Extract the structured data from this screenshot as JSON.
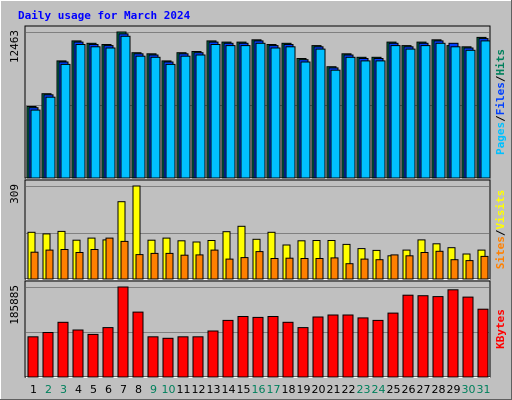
{
  "title": "Daily usage for March 2024",
  "colors": {
    "background": "#c0c0c0",
    "title": "#0000ff",
    "hits": "#00805c",
    "files": "#0040ff",
    "pages": "#00c0ff",
    "visits": "#ffff00",
    "sites": "#ff8000",
    "kbytes": "#ff0000",
    "weekend_label": "#00805c",
    "weekday_label": "#000000",
    "grid": "#808080"
  },
  "chart_data": [
    {
      "type": "bar",
      "panel": "hits-files-pages",
      "max_label": "12463",
      "ylim": [
        0,
        12463
      ],
      "axis_labels": [
        {
          "text": "Pages",
          "color_key": "pages"
        },
        {
          "text": "/",
          "color_key": "axis_sep"
        },
        {
          "text": "Files",
          "color_key": "files"
        },
        {
          "text": "/",
          "color_key": "axis_sep"
        },
        {
          "text": "Hits",
          "color_key": "hits"
        }
      ],
      "categories": [
        "1",
        "2",
        "3",
        "4",
        "5",
        "6",
        "7",
        "8",
        "9",
        "10",
        "11",
        "12",
        "13",
        "14",
        "15",
        "16",
        "17",
        "18",
        "19",
        "20",
        "21",
        "22",
        "23",
        "24",
        "25",
        "26",
        "27",
        "28",
        "29",
        "30",
        "31"
      ],
      "series": [
        {
          "name": "Hits",
          "color_key": "hits",
          "values": [
            6100,
            7200,
            10000,
            11700,
            11500,
            11400,
            12463,
            10700,
            10600,
            10000,
            10700,
            10800,
            11700,
            11600,
            11600,
            11800,
            11400,
            11500,
            10200,
            11300,
            9500,
            10600,
            10300,
            10300,
            11600,
            11300,
            11600,
            11800,
            11300,
            11200,
            12000
          ]
        },
        {
          "name": "Files",
          "color_key": "files",
          "values": [
            6000,
            7100,
            9900,
            11600,
            11400,
            11300,
            12300,
            10600,
            10500,
            9900,
            10600,
            10700,
            11600,
            11500,
            11500,
            11700,
            11300,
            11400,
            10100,
            11200,
            9400,
            10500,
            10200,
            10200,
            11500,
            11200,
            11500,
            11700,
            11500,
            11100,
            11900
          ]
        },
        {
          "name": "Pages",
          "color_key": "pages",
          "values": [
            5800,
            6900,
            9700,
            11400,
            11200,
            11100,
            12100,
            10400,
            10300,
            9700,
            10400,
            10500,
            11400,
            11300,
            11300,
            11500,
            11100,
            11200,
            9900,
            11000,
            9200,
            10300,
            10000,
            10000,
            11300,
            11000,
            11300,
            11500,
            11200,
            10900,
            11700
          ]
        }
      ]
    },
    {
      "type": "bar",
      "panel": "visits-sites",
      "max_label": "309",
      "ylim": [
        0,
        309
      ],
      "axis_labels": [
        {
          "text": "Sites",
          "color_key": "sites"
        },
        {
          "text": "/",
          "color_key": "axis_sep"
        },
        {
          "text": "Visits",
          "color_key": "visits"
        }
      ],
      "categories": [
        "1",
        "2",
        "3",
        "4",
        "5",
        "6",
        "7",
        "8",
        "9",
        "10",
        "11",
        "12",
        "13",
        "14",
        "15",
        "16",
        "17",
        "18",
        "19",
        "20",
        "21",
        "22",
        "23",
        "24",
        "25",
        "26",
        "27",
        "28",
        "29",
        "30",
        "31"
      ],
      "series": [
        {
          "name": "Visits",
          "color_key": "visits",
          "values": [
            155,
            150,
            158,
            129,
            136,
            130,
            257,
            309,
            129,
            136,
            127,
            123,
            128,
            157,
            175,
            132,
            155,
            113,
            127,
            128,
            128,
            115,
            101,
            95,
            77,
            96,
            130,
            117,
            104,
            83,
            96
          ]
        },
        {
          "name": "Sites",
          "color_key": "sites",
          "values": [
            89,
            96,
            98,
            88,
            98,
            136,
            125,
            81,
            85,
            85,
            79,
            80,
            96,
            66,
            71,
            91,
            68,
            69,
            68,
            68,
            70,
            51,
            66,
            64,
            80,
            77,
            88,
            92,
            64,
            61,
            75
          ]
        }
      ]
    },
    {
      "type": "bar",
      "panel": "kbytes",
      "max_label": "185885",
      "ylim": [
        0,
        185885
      ],
      "axis_labels": [
        {
          "text": "KBytes",
          "color_key": "kbytes"
        }
      ],
      "categories": [
        "1",
        "2",
        "3",
        "4",
        "5",
        "6",
        "7",
        "8",
        "9",
        "10",
        "11",
        "12",
        "13",
        "14",
        "15",
        "16",
        "17",
        "18",
        "19",
        "20",
        "21",
        "22",
        "23",
        "24",
        "25",
        "26",
        "27",
        "28",
        "29",
        "30",
        "31"
      ],
      "series": [
        {
          "name": "KBytes",
          "color_key": "kbytes",
          "values": [
            83000,
            92000,
            113000,
            97000,
            88000,
            102000,
            185885,
            134000,
            83000,
            80000,
            83000,
            83000,
            95000,
            117000,
            125000,
            123000,
            125000,
            113000,
            102000,
            124000,
            128000,
            128000,
            122000,
            117000,
            132000,
            169000,
            168000,
            166000,
            180000,
            165000,
            140000
          ]
        }
      ]
    }
  ],
  "day_labels": [
    {
      "text": "1",
      "weekend": false
    },
    {
      "text": "2",
      "weekend": true
    },
    {
      "text": "3",
      "weekend": true
    },
    {
      "text": "4",
      "weekend": false
    },
    {
      "text": "5",
      "weekend": false
    },
    {
      "text": "6",
      "weekend": false
    },
    {
      "text": "7",
      "weekend": false
    },
    {
      "text": "8",
      "weekend": false
    },
    {
      "text": "9",
      "weekend": true
    },
    {
      "text": "10",
      "weekend": true
    },
    {
      "text": "11",
      "weekend": false
    },
    {
      "text": "12",
      "weekend": false
    },
    {
      "text": "13",
      "weekend": false
    },
    {
      "text": "14",
      "weekend": false
    },
    {
      "text": "15",
      "weekend": false
    },
    {
      "text": "16",
      "weekend": true
    },
    {
      "text": "17",
      "weekend": true
    },
    {
      "text": "18",
      "weekend": false
    },
    {
      "text": "19",
      "weekend": false
    },
    {
      "text": "20",
      "weekend": false
    },
    {
      "text": "21",
      "weekend": false
    },
    {
      "text": "22",
      "weekend": false
    },
    {
      "text": "23",
      "weekend": true
    },
    {
      "text": "24",
      "weekend": true
    },
    {
      "text": "25",
      "weekend": false
    },
    {
      "text": "26",
      "weekend": false
    },
    {
      "text": "27",
      "weekend": false
    },
    {
      "text": "28",
      "weekend": false
    },
    {
      "text": "29",
      "weekend": false
    },
    {
      "text": "30",
      "weekend": true
    },
    {
      "text": "31",
      "weekend": true
    }
  ]
}
